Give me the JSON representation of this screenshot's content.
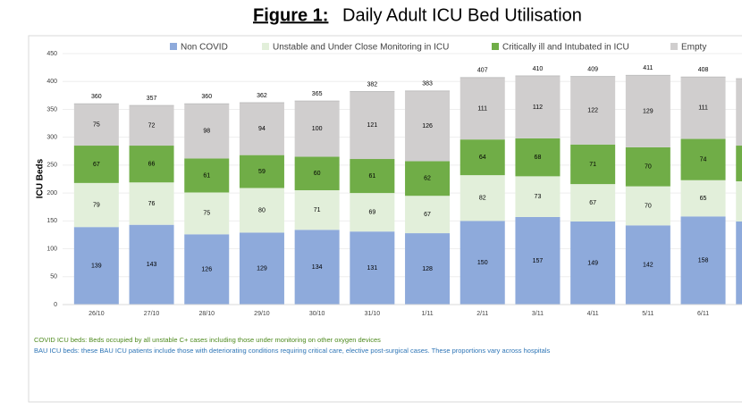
{
  "chart_data": {
    "type": "stacked-bar",
    "figure_label": "Figure 1:",
    "title": "Daily Adult ICU Bed Utilisation",
    "ylabel": "ICU Beds",
    "categories": [
      "26/10",
      "27/10",
      "28/10",
      "29/10",
      "30/10",
      "31/10",
      "1/11",
      "2/11",
      "3/11",
      "4/11",
      "5/11",
      "6/11",
      null
    ],
    "series": [
      {
        "name": "Non COVID",
        "color": "#8eaadb",
        "values": [
          139,
          143,
          126,
          129,
          134,
          131,
          128,
          150,
          157,
          149,
          142,
          158,
          149
        ]
      },
      {
        "name": "Unstable and Under Close Monitoring in ICU",
        "color": "#e2efda",
        "values": [
          79,
          76,
          75,
          80,
          71,
          69,
          67,
          82,
          73,
          67,
          70,
          65,
          72
        ]
      },
      {
        "name": "Critically ill and Intubated in ICU",
        "color": "#70ad47",
        "values": [
          67,
          66,
          61,
          59,
          60,
          61,
          62,
          64,
          68,
          71,
          70,
          74,
          64
        ]
      },
      {
        "name": "Empty",
        "color": "#d0cece",
        "values": [
          75,
          72,
          98,
          94,
          100,
          121,
          126,
          111,
          112,
          122,
          129,
          111,
          120
        ]
      }
    ],
    "totals": [
      360,
      357,
      360,
      362,
      365,
      382,
      383,
      407,
      410,
      409,
      411,
      408,
      null
    ],
    "ylim": [
      0,
      450
    ],
    "yticks": [
      0,
      50,
      100,
      150,
      200,
      250,
      300,
      350,
      400,
      450
    ],
    "grid": true,
    "legend": "top",
    "notes": [
      {
        "text": "COVID ICU beds: Beds occupied by all unstable C+ cases including those under monitoring on other oxygen devices",
        "color": "#4e8a1e"
      },
      {
        "text": "BAU ICU beds: these BAU ICU patients include those with deteriorating conditions requiring critical care, elective post-surgical cases. These proportions vary across hospitals",
        "color": "#2e75b6"
      }
    ]
  }
}
